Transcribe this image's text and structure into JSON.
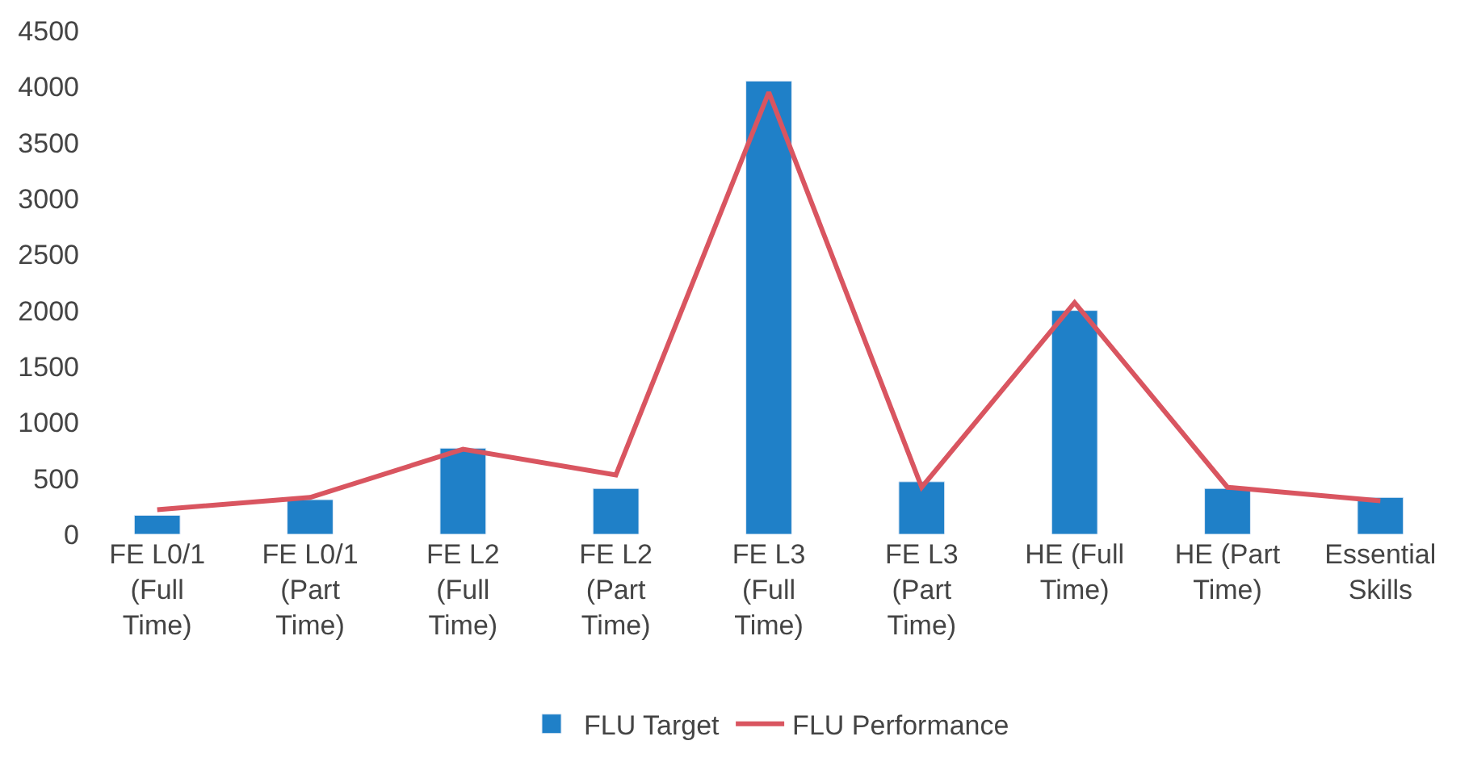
{
  "chart_data": {
    "type": "bar",
    "categories": [
      "FE L0/1 (Full Time)",
      "FE L0/1 (Part Time)",
      "FE L2 (Full Time)",
      "FE L2 (Part Time)",
      "FE L3 (Full Time)",
      "FE L3 (Part Time)",
      "HE (Full Time)",
      "HE (Part Time)",
      "Essential Skills"
    ],
    "series": [
      {
        "name": "FLU Target",
        "color": "#1f80c8",
        "values": [
          170,
          310,
          770,
          410,
          4050,
          470,
          2000,
          410,
          330
        ]
      },
      {
        "name": "FLU Performance",
        "type": "line",
        "color": "#d95560",
        "values": [
          220,
          330,
          760,
          530,
          3950,
          420,
          2070,
          420,
          300
        ]
      }
    ],
    "ylim": [
      0,
      4500
    ],
    "yticks": [
      0,
      500,
      1000,
      1500,
      2000,
      2500,
      3000,
      3500,
      4000,
      4500
    ],
    "legend": "bottom",
    "marker": "none",
    "line_style": "solid"
  }
}
